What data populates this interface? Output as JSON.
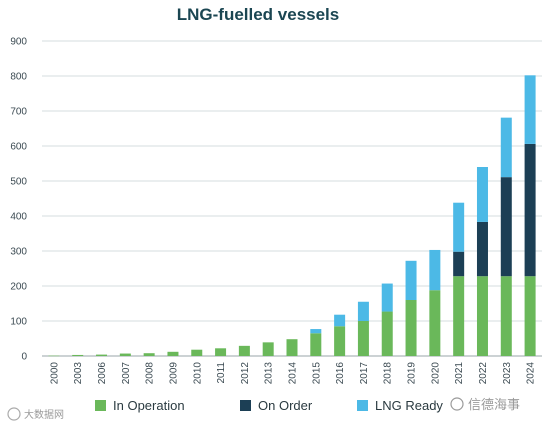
{
  "chart_data": {
    "type": "bar",
    "stacked": true,
    "title": "LNG-fuelled vessels",
    "categories": [
      "2000",
      "2003",
      "2006",
      "2007",
      "2008",
      "2009",
      "2010",
      "2011",
      "2012",
      "2013",
      "2014",
      "2015",
      "2016",
      "2017",
      "2018",
      "2019",
      "2020",
      "2021",
      "2022",
      "2023",
      "2024"
    ],
    "series": [
      {
        "name": "In Operation",
        "color": "#6ab85a",
        "values": [
          1,
          3,
          4,
          7,
          8,
          12,
          18,
          22,
          29,
          39,
          48,
          65,
          85,
          100,
          127,
          160,
          188,
          228,
          228,
          228,
          228
        ]
      },
      {
        "name": "On Order",
        "color": "#1c3f55",
        "values": [
          0,
          0,
          0,
          0,
          0,
          0,
          0,
          0,
          0,
          0,
          0,
          0,
          0,
          0,
          0,
          0,
          0,
          70,
          155,
          283,
          378
        ]
      },
      {
        "name": "LNG Ready",
        "color": "#4cb9e6",
        "values": [
          0,
          0,
          0,
          0,
          0,
          0,
          0,
          0,
          0,
          0,
          0,
          12,
          33,
          55,
          80,
          112,
          115,
          140,
          157,
          170,
          196
        ]
      }
    ],
    "ylim": [
      0,
      900
    ],
    "yticks": [
      0,
      100,
      200,
      300,
      400,
      500,
      600,
      700,
      800,
      900
    ],
    "grid": true,
    "legend_position": "bottom"
  },
  "watermarks": {
    "left": "大数据网",
    "right": "信德海事"
  }
}
